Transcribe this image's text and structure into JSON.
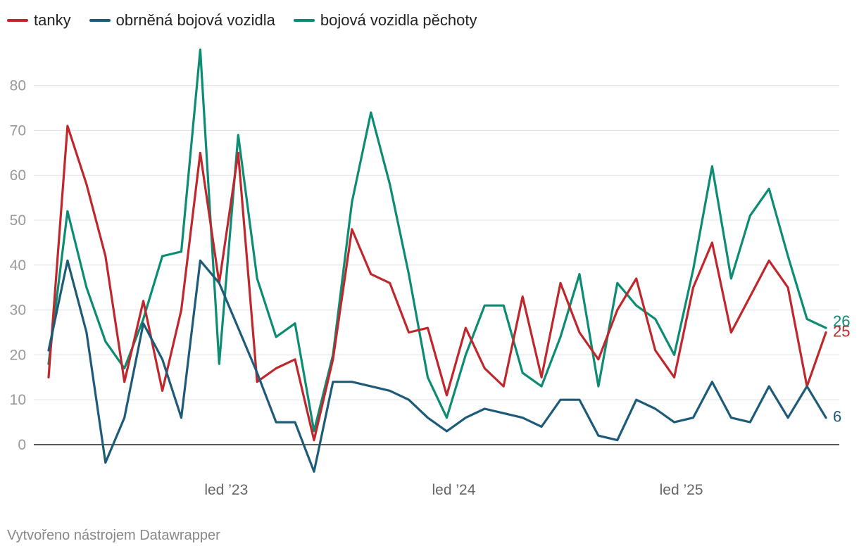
{
  "chart_data": {
    "type": "line",
    "title": "",
    "xlabel": "",
    "ylabel": "",
    "ylim": [
      -6,
      88
    ],
    "y_ticks": [
      "0",
      "10",
      "20",
      "30",
      "40",
      "50",
      "60",
      "70",
      "80"
    ],
    "x_tick_labels": [
      {
        "label": "led ’23",
        "index": 9
      },
      {
        "label": "led ’24",
        "index": 21
      },
      {
        "label": "led ’25",
        "index": 33
      }
    ],
    "legend_position": "top-left",
    "series": [
      {
        "name": "tanky",
        "color": "#c0272d",
        "end_label": "25",
        "values": [
          15,
          71,
          58,
          42,
          14,
          32,
          12,
          30,
          65,
          36,
          65,
          14,
          17,
          19,
          1,
          19,
          48,
          38,
          36,
          25,
          26,
          11,
          26,
          17,
          13,
          33,
          15,
          36,
          25,
          19,
          30,
          37,
          21,
          15,
          35,
          45,
          25,
          33,
          41,
          35,
          13,
          25
        ]
      },
      {
        "name": "obrněná bojová vozidla",
        "color": "#1d5b79",
        "end_label": "6",
        "values": [
          21,
          41,
          25,
          -4,
          6,
          27,
          19,
          6,
          41,
          36,
          26,
          16,
          5,
          5,
          -6,
          14,
          14,
          13,
          12,
          10,
          6,
          3,
          6,
          8,
          7,
          6,
          4,
          10,
          10,
          2,
          1,
          10,
          8,
          5,
          6,
          14,
          6,
          5,
          13,
          6,
          13,
          6
        ]
      },
      {
        "name": "bojová vozidla pěchoty",
        "color": "#0b8c73",
        "end_label": "26",
        "values": [
          18,
          52,
          35,
          23,
          17,
          28,
          42,
          43,
          88,
          18,
          69,
          37,
          24,
          27,
          3,
          20,
          54,
          74,
          58,
          38,
          15,
          6,
          20,
          31,
          31,
          16,
          13,
          24,
          38,
          13,
          36,
          31,
          28,
          20,
          39,
          62,
          37,
          51,
          57,
          42,
          28,
          26
        ]
      }
    ]
  },
  "legend": {
    "items": [
      "tanky",
      "obrněná bojová vozidla",
      "bojová vozidla pěchoty"
    ]
  },
  "credit": "Vytvořeno nástrojem Datawrapper"
}
